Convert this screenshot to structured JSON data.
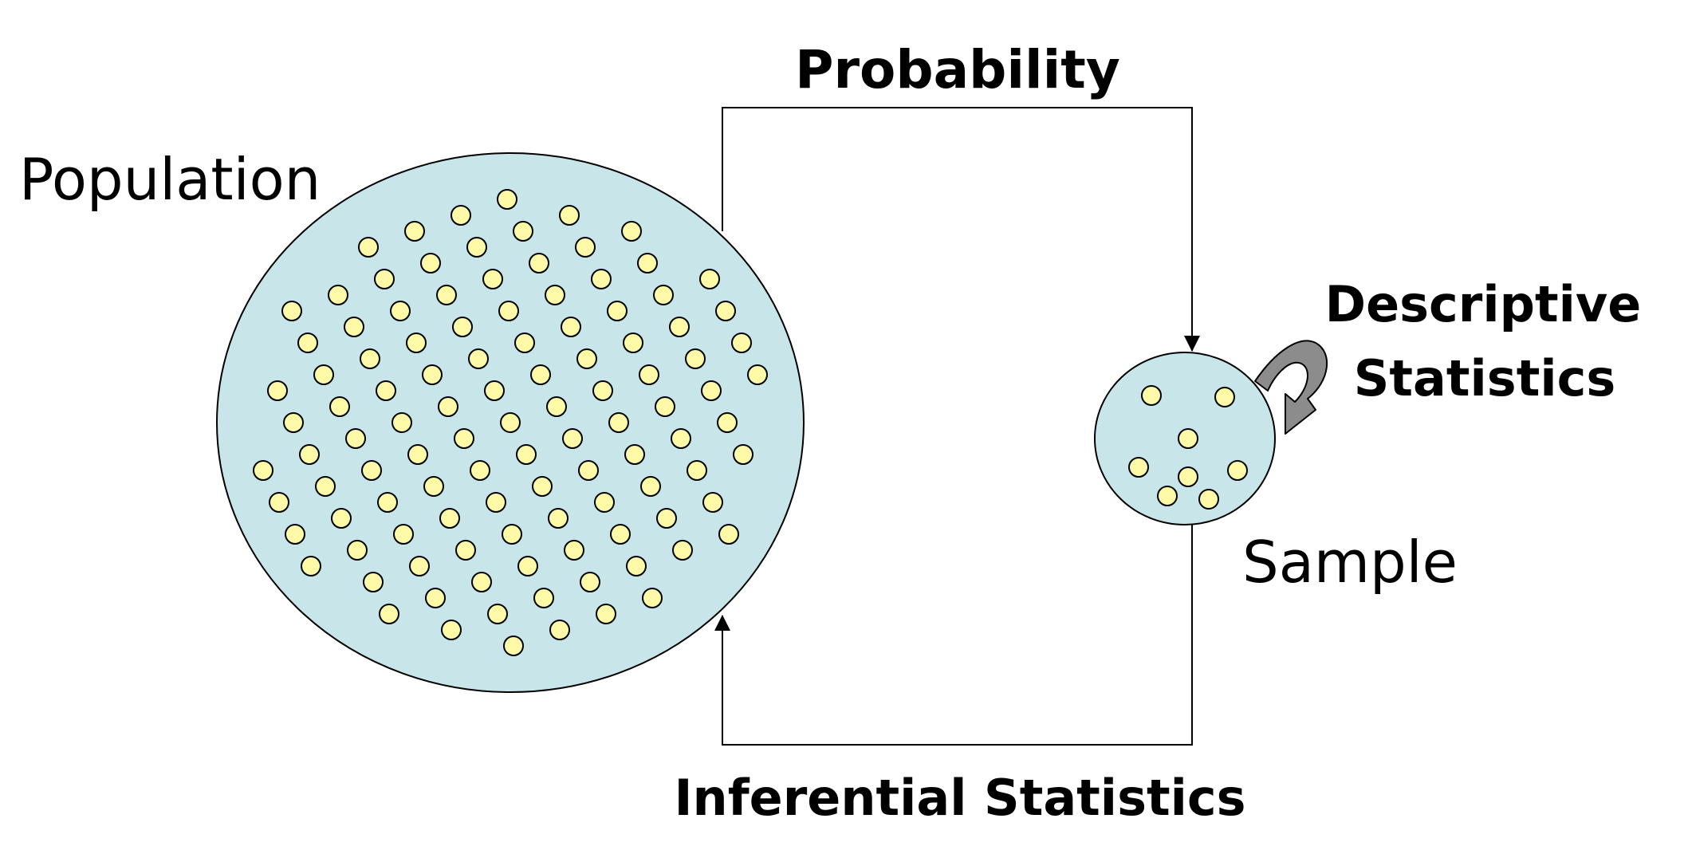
{
  "labels": {
    "probability": "Probability",
    "population": "Population",
    "descriptive_line1": "Descriptive",
    "descriptive_line2": "Statistics",
    "sample": "Sample",
    "inferential": "Inferential Statistics"
  },
  "colors": {
    "blob_fill": "#c8e6ea",
    "dot_fill": "#fffaa8",
    "stroke": "#000000",
    "curved_arrow": "#8c8c8c"
  },
  "population_dot_count": 109,
  "sample_dot_count": 8
}
